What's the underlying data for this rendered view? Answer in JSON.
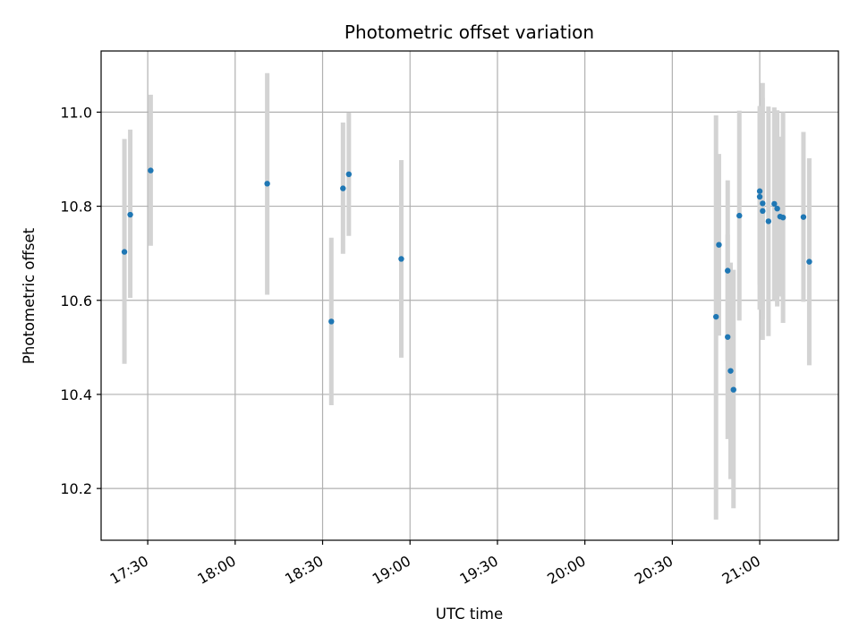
{
  "chart_data": {
    "type": "scatter",
    "title": "Photometric offset variation",
    "xlabel": "UTC time",
    "ylabel": "Photometric offset",
    "x_is_time": true,
    "xlim": [
      "17:14",
      "21:27"
    ],
    "ylim": [
      10.09,
      11.13
    ],
    "yticks": [
      10.2,
      10.4,
      10.6,
      10.8,
      11.0
    ],
    "ytick_labels": [
      "10.2",
      "10.4",
      "10.6",
      "10.8",
      "11.0"
    ],
    "xticks": [
      "17:30",
      "18:00",
      "18:30",
      "19:00",
      "19:30",
      "20:00",
      "20:30",
      "21:00"
    ],
    "grid": true,
    "colors": {
      "point": "#1f77b4",
      "errorbar": "#d3d3d3",
      "grid": "#b0b0b0"
    },
    "series": [
      {
        "points": [
          {
            "x": "17:22",
            "y": 10.703,
            "lo": 10.465,
            "hi": 10.943
          },
          {
            "x": "17:24",
            "y": 10.782,
            "lo": 10.605,
            "hi": 10.963
          },
          {
            "x": "17:31",
            "y": 10.876,
            "lo": 10.716,
            "hi": 11.037
          },
          {
            "x": "18:11",
            "y": 10.848,
            "lo": 10.612,
            "hi": 11.083
          },
          {
            "x": "18:33",
            "y": 10.555,
            "lo": 10.377,
            "hi": 10.733
          },
          {
            "x": "18:37",
            "y": 10.838,
            "lo": 10.699,
            "hi": 10.978
          },
          {
            "x": "18:39",
            "y": 10.868,
            "lo": 10.737,
            "hi": 10.999
          },
          {
            "x": "18:57",
            "y": 10.688,
            "lo": 10.478,
            "hi": 10.898
          },
          {
            "x": "20:45",
            "y": 10.565,
            "lo": 10.134,
            "hi": 10.993
          },
          {
            "x": "20:46",
            "y": 10.718,
            "lo": 10.525,
            "hi": 10.911
          },
          {
            "x": "20:49",
            "y": 10.663,
            "lo": 10.471,
            "hi": 10.855
          },
          {
            "x": "20:49",
            "y": 10.522,
            "lo": 10.305,
            "hi": 10.74
          },
          {
            "x": "20:50",
            "y": 10.45,
            "lo": 10.22,
            "hi": 10.68
          },
          {
            "x": "20:51",
            "y": 10.41,
            "lo": 10.158,
            "hi": 10.665
          },
          {
            "x": "20:53",
            "y": 10.78,
            "lo": 10.557,
            "hi": 11.003
          },
          {
            "x": "21:00",
            "y": 10.832,
            "lo": 10.633,
            "hi": 11.013
          },
          {
            "x": "21:00",
            "y": 10.82,
            "lo": 10.58,
            "hi": 11.0
          },
          {
            "x": "21:01",
            "y": 10.806,
            "lo": 10.56,
            "hi": 11.03
          },
          {
            "x": "21:01",
            "y": 10.79,
            "lo": 10.516,
            "hi": 11.062
          },
          {
            "x": "21:03",
            "y": 10.768,
            "lo": 10.524,
            "hi": 11.012
          },
          {
            "x": "21:05",
            "y": 10.805,
            "lo": 10.6,
            "hi": 11.01
          },
          {
            "x": "21:06",
            "y": 10.795,
            "lo": 10.587,
            "hi": 11.004
          },
          {
            "x": "21:07",
            "y": 10.778,
            "lo": 10.608,
            "hi": 10.948
          },
          {
            "x": "21:08",
            "y": 10.776,
            "lo": 10.552,
            "hi": 11.0
          },
          {
            "x": "21:15",
            "y": 10.777,
            "lo": 10.597,
            "hi": 10.958
          },
          {
            "x": "21:17",
            "y": 10.682,
            "lo": 10.462,
            "hi": 10.902
          }
        ]
      }
    ]
  }
}
